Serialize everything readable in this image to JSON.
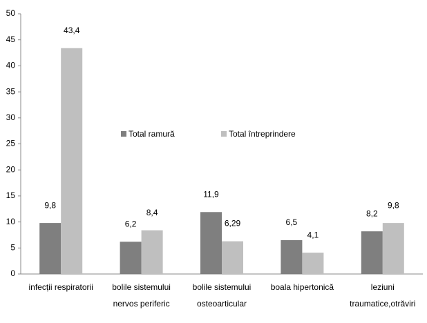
{
  "chart_data": {
    "type": "bar",
    "categories": [
      [
        "infecții respiratorii"
      ],
      [
        "bolile sistemului",
        "nervos periferic"
      ],
      [
        "bolile sistemului",
        "osteoarticular"
      ],
      [
        "boala hipertonică"
      ],
      [
        "leziuni",
        "traumatice,otrăviri"
      ]
    ],
    "series": [
      {
        "name": "Total ramură",
        "color": "#7f7f7f",
        "values": [
          9.8,
          6.2,
          11.9,
          6.5,
          8.2
        ],
        "value_labels": [
          "9,8",
          "6,2",
          "11,9",
          "6,5",
          "8,2"
        ]
      },
      {
        "name": "Total întreprindere",
        "color": "#bfbfbf",
        "values": [
          43.4,
          8.4,
          6.29,
          4.1,
          9.8
        ],
        "value_labels": [
          "43,4",
          "8,4",
          "6,29",
          "4,1",
          "9,8"
        ]
      }
    ],
    "ylim": [
      0,
      50
    ],
    "yticks": [
      0,
      5,
      10,
      15,
      20,
      25,
      30,
      35,
      40,
      45,
      50
    ],
    "grid": false
  }
}
